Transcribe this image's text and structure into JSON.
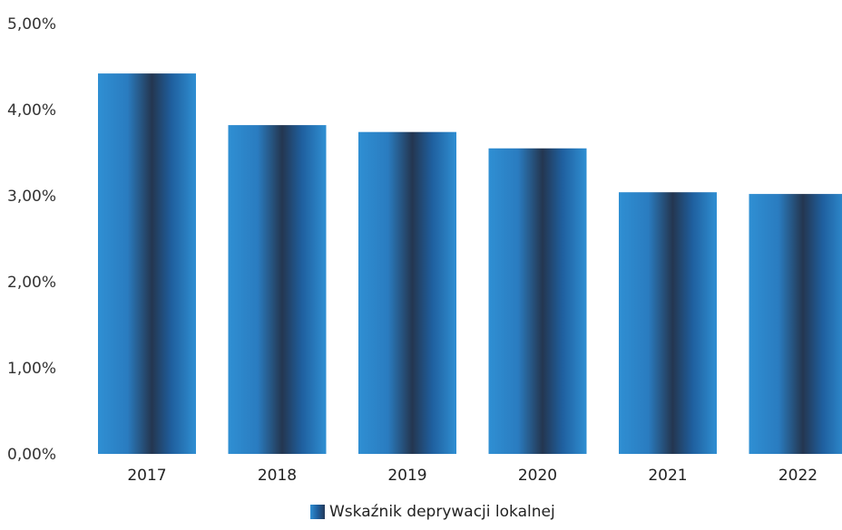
{
  "chart_data": {
    "type": "bar",
    "categories": [
      "2017",
      "2018",
      "2019",
      "2020",
      "2021",
      "2022"
    ],
    "series": [
      {
        "name": "Wskaźnik deprywacji lokalnej",
        "values": [
          4.42,
          3.82,
          3.74,
          3.55,
          3.04,
          3.02
        ]
      }
    ],
    "yticks": [
      "0,00%",
      "1,00%",
      "2,00%",
      "3,00%",
      "4,00%",
      "5,00%"
    ],
    "ylim": [
      0,
      5
    ],
    "grid": false,
    "legend_position": "bottom",
    "colors": {
      "bar_light": "#2f8fd3",
      "bar_mid": "#1f63a6",
      "bar_dark": "#243650"
    }
  }
}
